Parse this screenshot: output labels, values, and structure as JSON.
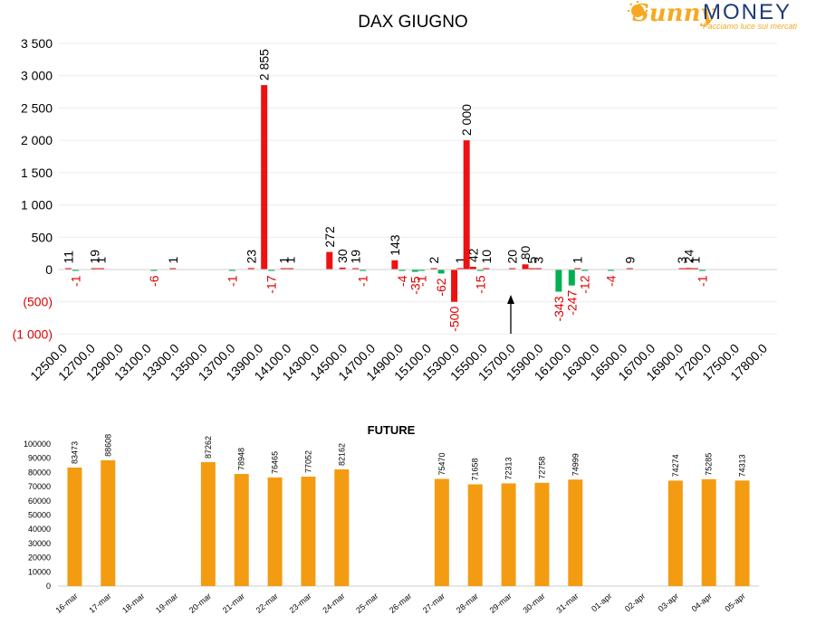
{
  "logo": {
    "brand_left": "Sunny",
    "brand_right": "MONEY",
    "tagline": "Facciamo luce sui mercati"
  },
  "colors": {
    "red": "#ee1111",
    "green": "#00b050",
    "orange": "#f39c12",
    "neg_label": "#dd0000",
    "text": "#000000",
    "grid": "#ececec"
  },
  "chart_data": [
    {
      "type": "bar",
      "title": "DAX GIUGNO",
      "xlabel": "",
      "ylabel": "",
      "ylim": [
        -1000,
        3500
      ],
      "y_ticks": [
        "3 500",
        "3 000",
        "2 500",
        "2 000",
        "1 500",
        "1 000",
        "500",
        "0",
        "(500)",
        "(1 000)"
      ],
      "categories": [
        "12500.0",
        "12700.0",
        "12900.0",
        "13100.0",
        "13300.0",
        "13500.0",
        "13700.0",
        "13900.0",
        "14100.0",
        "14300.0",
        "14500.0",
        "14700.0",
        "14900.0",
        "15100.0",
        "15300.0",
        "15500.0",
        "15700.0",
        "15900.0",
        "16100.0",
        "16300.0",
        "16500.0",
        "16700.0",
        "16900.0",
        "17200.0",
        "17500.0",
        "17800.0"
      ],
      "marker_label": "15700.0",
      "series": [
        {
          "bars": [
            {
              "x": 12500,
              "value": 11,
              "label": "11"
            },
            {
              "x": 12700,
              "value": 19,
              "label": "19"
            },
            {
              "x": 12750,
              "value": 1,
              "label": "1"
            },
            {
              "x": 13300,
              "value": 1,
              "label": "1"
            },
            {
              "x": 13900,
              "value": 23,
              "label": "23"
            },
            {
              "x": 14000,
              "value": 2855,
              "label": "2 855"
            },
            {
              "x": 14150,
              "value": 1,
              "label": "1"
            },
            {
              "x": 14200,
              "value": 1,
              "label": "1"
            },
            {
              "x": 14500,
              "value": 272,
              "label": "272"
            },
            {
              "x": 14600,
              "value": 30,
              "label": "30"
            },
            {
              "x": 14700,
              "value": 19,
              "label": "19"
            },
            {
              "x": 15000,
              "value": 143,
              "label": "143"
            },
            {
              "x": 15300,
              "value": 2,
              "label": "2"
            },
            {
              "x": 15500,
              "value": 1,
              "label": "1"
            },
            {
              "x": 15550,
              "value": 2000,
              "label": "2 000"
            },
            {
              "x": 15600,
              "value": 42,
              "label": "42"
            },
            {
              "x": 15700,
              "value": 10,
              "label": "10"
            },
            {
              "x": 15900,
              "value": 20,
              "label": "20"
            },
            {
              "x": 16000,
              "value": 80,
              "label": "80"
            },
            {
              "x": 16050,
              "value": 5,
              "label": "5"
            },
            {
              "x": 16100,
              "value": 3,
              "label": "3"
            },
            {
              "x": 16400,
              "value": 1,
              "label": "1"
            },
            {
              "x": 16800,
              "value": 9,
              "label": "9"
            },
            {
              "x": 17200,
              "value": 3,
              "label": "3"
            },
            {
              "x": 17250,
              "value": 24,
              "label": "24"
            },
            {
              "x": 17300,
              "value": 1,
              "label": "1"
            }
          ]
        },
        {
          "bars": [
            {
              "x": 12500,
              "value": -1,
              "label": "-1"
            },
            {
              "x": 13100,
              "value": -6,
              "label": "-6"
            },
            {
              "x": 13700,
              "value": -1,
              "label": "-1"
            },
            {
              "x": 14000,
              "value": -17,
              "label": "-17"
            },
            {
              "x": 14700,
              "value": -1,
              "label": "-1"
            },
            {
              "x": 15000,
              "value": -4,
              "label": "-4"
            },
            {
              "x": 15100,
              "value": -35,
              "label": "-35"
            },
            {
              "x": 15150,
              "value": -1,
              "label": "-1"
            },
            {
              "x": 15300,
              "value": -62,
              "label": "-62"
            },
            {
              "x": 15400,
              "value": -500,
              "label": "-500"
            },
            {
              "x": 15600,
              "value": -15,
              "label": "-15"
            },
            {
              "x": 16200,
              "value": -343,
              "label": "-343"
            },
            {
              "x": 16300,
              "value": -247,
              "label": "-247"
            },
            {
              "x": 16400,
              "value": -12,
              "label": "-12"
            },
            {
              "x": 16600,
              "value": -4,
              "label": "-4"
            },
            {
              "x": 17300,
              "value": -1,
              "label": "-1"
            }
          ]
        }
      ]
    },
    {
      "type": "bar",
      "title": "FUTURE",
      "xlabel": "",
      "ylabel": "",
      "ylim": [
        0,
        100000
      ],
      "y_ticks": [
        "100000",
        "90000",
        "80000",
        "70000",
        "60000",
        "50000",
        "40000",
        "30000",
        "20000",
        "10000",
        "0"
      ],
      "categories": [
        "16-mar",
        "17-mar",
        "18-mar",
        "19-mar",
        "20-mar",
        "21-mar",
        "22-mar",
        "23-mar",
        "24-mar",
        "25-mar",
        "26-mar",
        "27-mar",
        "28-mar",
        "29-mar",
        "30-mar",
        "31-mar",
        "01-apr",
        "02-apr",
        "03-apr",
        "04-apr",
        "05-apr"
      ],
      "values": [
        83473,
        88608,
        null,
        null,
        87262,
        78948,
        76465,
        77052,
        82162,
        null,
        null,
        75470,
        71658,
        72313,
        72758,
        74999,
        null,
        null,
        74274,
        75285,
        74313
      ],
      "labels": [
        "83473",
        "88608",
        "",
        "",
        "87262",
        "78948",
        "76465",
        "77052",
        "82162",
        "",
        "",
        "75470",
        "71658",
        "72313",
        "72758",
        "74999",
        "",
        "",
        "74274",
        "75285",
        "74313"
      ]
    }
  ]
}
